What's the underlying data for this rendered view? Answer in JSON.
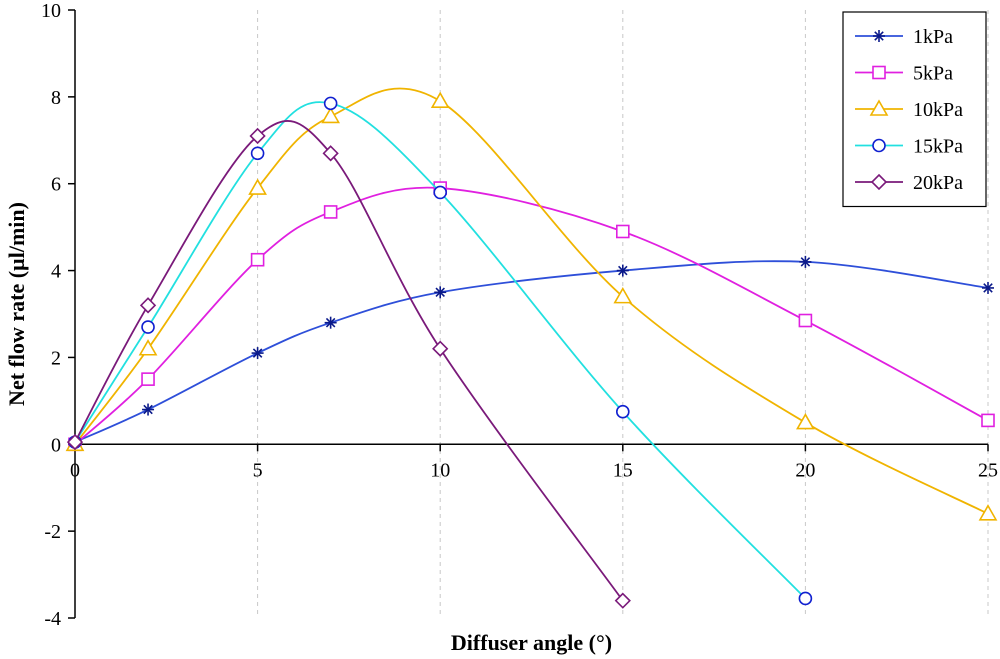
{
  "chart_data": {
    "type": "line",
    "xlabel": "Diffuser angle (°)",
    "ylabel": "Net flow rate (µl/min)",
    "xlim": [
      0,
      25
    ],
    "ylim": [
      -4,
      10
    ],
    "xticks": [
      0,
      5,
      10,
      15,
      20,
      25
    ],
    "yticks": [
      -4,
      -2,
      0,
      2,
      4,
      6,
      8,
      10
    ],
    "grid": "vertical dashed",
    "legend_position": "top-right",
    "series": [
      {
        "name": "1kPa",
        "marker": "asterisk",
        "color": "#2e4fd9",
        "marker_color": "#0b1a8a",
        "x": [
          0,
          2,
          5,
          7,
          10,
          15,
          20,
          25
        ],
        "values": [
          0.05,
          0.8,
          2.1,
          2.8,
          3.5,
          4.0,
          4.2,
          3.6
        ]
      },
      {
        "name": "5kPa",
        "marker": "square",
        "color": "#e020e0",
        "marker_color": "#e020e0",
        "x": [
          0,
          2,
          5,
          7,
          10,
          15,
          20,
          25
        ],
        "values": [
          0.0,
          1.5,
          4.25,
          5.35,
          5.9,
          4.9,
          2.85,
          0.55
        ]
      },
      {
        "name": "10kPa",
        "marker": "triangle",
        "color": "#f0b400",
        "marker_color": "#f0b400",
        "x": [
          0,
          2,
          5,
          7,
          10,
          15,
          20,
          25
        ],
        "values": [
          0.0,
          2.2,
          5.9,
          7.55,
          7.9,
          3.4,
          0.5,
          -1.6
        ]
      },
      {
        "name": "15kPa",
        "marker": "circle",
        "color": "#22e0e0",
        "marker_color": "#1020d0",
        "x": [
          0,
          2,
          5,
          7,
          10,
          15,
          20
        ],
        "values": [
          0.05,
          2.7,
          6.7,
          7.85,
          5.8,
          0.75,
          -3.55
        ]
      },
      {
        "name": "20kPa",
        "marker": "diamond",
        "color": "#7a1a7a",
        "marker_color": "#7a1a7a",
        "x": [
          0,
          2,
          5,
          7,
          10,
          15
        ],
        "values": [
          0.05,
          3.2,
          7.1,
          6.7,
          2.2,
          -3.6
        ]
      }
    ]
  }
}
